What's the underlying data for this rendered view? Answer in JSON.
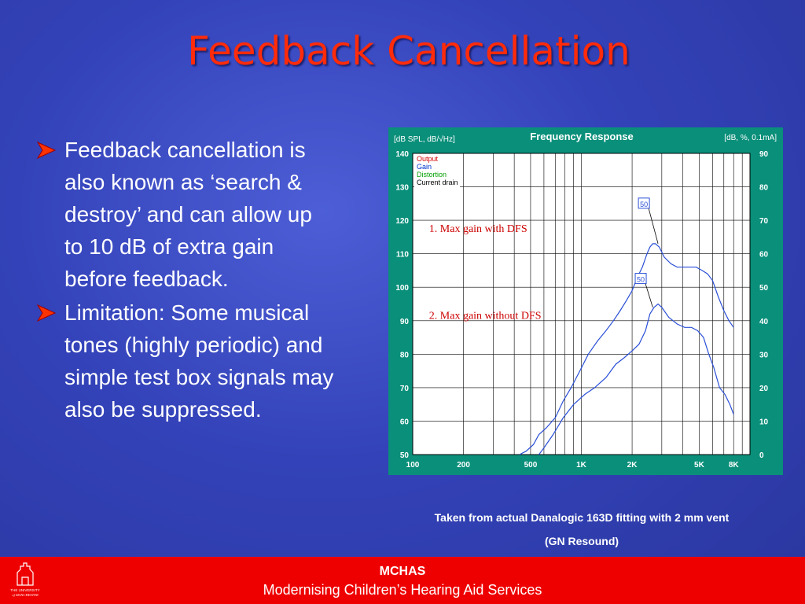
{
  "title": "Feedback Cancellation",
  "bullets": [
    {
      "text": "Feedback cancellation is also known as ‘search & destroy’ and can allow up to 10 dB of extra gain before feedback."
    },
    {
      "text": "Limitation:  Some musical tones (highly periodic) and simple test box signals may also be suppressed."
    }
  ],
  "chart_data": {
    "type": "line",
    "title": "Frequency Response",
    "left_axis_label": "[dB SPL, dB/√Hz]",
    "right_axis_label": "[dB, %, 0.1mA]",
    "x_scale": "log",
    "xlim": [
      100,
      10000
    ],
    "ylim": [
      50,
      140
    ],
    "y2lim": [
      0,
      90
    ],
    "x_tick_labels": [
      "100",
      "200",
      "500",
      "1K",
      "2K",
      "5K",
      "8K"
    ],
    "x_tick_values": [
      100,
      200,
      500,
      1000,
      2000,
      5000,
      8000
    ],
    "y_ticks": [
      50,
      60,
      70,
      80,
      90,
      100,
      110,
      120,
      130,
      140
    ],
    "y2_ticks": [
      0,
      10,
      20,
      30,
      40,
      50,
      60,
      70,
      80,
      90
    ],
    "grid": true,
    "legend": [
      "Output",
      "Gain",
      "Distortion",
      "Current drain"
    ],
    "legend_colors": [
      "#d40000",
      "#0033cc",
      "#00a000",
      "#000000"
    ],
    "line_color": "#2a4fd6",
    "series": [
      {
        "x": [
          430,
          470,
          520,
          560,
          620,
          700,
          780,
          870,
          980,
          1100,
          1250,
          1400,
          1550,
          1700,
          1850,
          2000,
          2150,
          2300,
          2450,
          2550,
          2650,
          2750,
          2900,
          3100,
          3400,
          3700,
          4000,
          4400,
          4800,
          5200,
          5600,
          6000,
          6500,
          7000,
          7500,
          8000
        ],
        "y": [
          50,
          51,
          53,
          56,
          58,
          61,
          66,
          70,
          75,
          80,
          84,
          87,
          90,
          93,
          96,
          99,
          103,
          106,
          110,
          112,
          113,
          113,
          112,
          109,
          107,
          106,
          106,
          106,
          106,
          105,
          104,
          102,
          97,
          93,
          90,
          88
        ]
      },
      {
        "x": [
          560,
          600,
          680,
          780,
          900,
          1050,
          1200,
          1400,
          1600,
          1800,
          2000,
          2200,
          2400,
          2550,
          2700,
          2850,
          3000,
          3300,
          3700,
          4100,
          4500,
          4900,
          5300,
          5700,
          6100,
          6600,
          7100,
          7600,
          8000
        ],
        "y": [
          50,
          52,
          56,
          61,
          65,
          68,
          70,
          73,
          77,
          79,
          81,
          83,
          87,
          92,
          94,
          95,
          94,
          91,
          89,
          88,
          88,
          87,
          85,
          80,
          76,
          70,
          68,
          65,
          62
        ]
      }
    ],
    "markers": [
      "50",
      "50"
    ],
    "annotations": [
      "1.  Max gain with DFS",
      "2.  Max gain without DFS"
    ]
  },
  "caption_line1": "Taken from actual Danalogic 163D fitting with 2 mm vent",
  "caption_line2": "(GN Resound)",
  "footer": {
    "title": "MCHAS",
    "subtitle": "Modernising Children’s Hearing Aid Services",
    "logo_text": "THE UNIVERSITY of MANCHESTER"
  },
  "colors": {
    "title_red": "#ff2b0a",
    "footer_red": "#ee0000",
    "chart_teal": "#0a8f7a",
    "background_blue": "#3342b8"
  }
}
